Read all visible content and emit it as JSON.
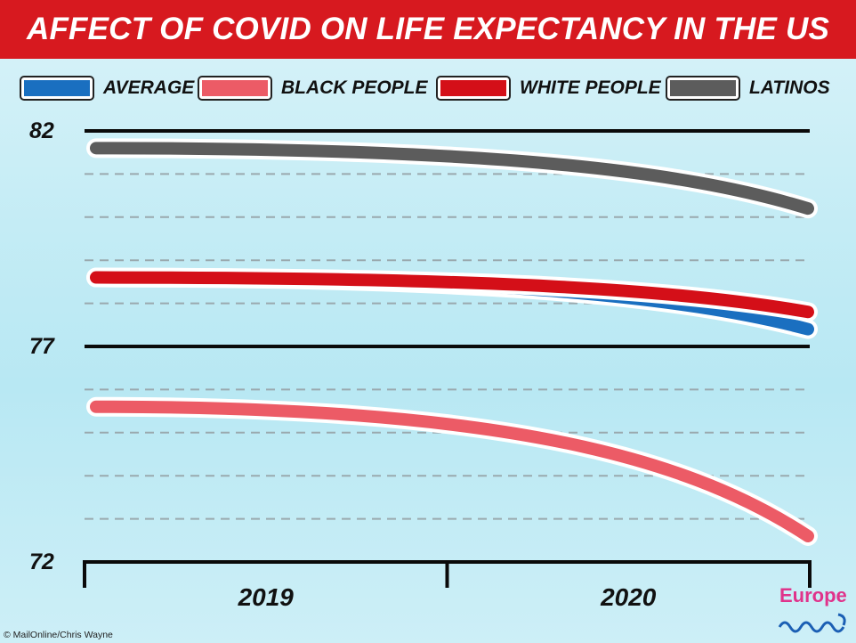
{
  "title": "AFFECT OF COVID ON LIFE EXPECTANCY IN THE US",
  "legend": [
    {
      "label": "AVERAGE",
      "color": "#1a6fc0"
    },
    {
      "label": "BLACK PEOPLE",
      "color": "#ec5b66"
    },
    {
      "label": "WHITE PEOPLE",
      "color": "#d40f18"
    },
    {
      "label": "LATINOS",
      "color": "#5c5c5c"
    }
  ],
  "credit": "© MailOnline/Chris Wayne",
  "logo_text": "Europe",
  "chart_data": {
    "type": "line",
    "title": "AFFECT OF COVID ON LIFE EXPECTANCY IN THE US",
    "x_categories": [
      "2019",
      "2020"
    ],
    "y_ticks": [
      82,
      77,
      72
    ],
    "ylim": [
      72,
      82
    ],
    "grid": true,
    "legend_position": "top",
    "series": [
      {
        "name": "LATINOS",
        "color": "#5c5c5c",
        "values": [
          81.6,
          80.2
        ]
      },
      {
        "name": "WHITE PEOPLE",
        "color": "#d40f18",
        "values": [
          78.6,
          77.8
        ]
      },
      {
        "name": "AVERAGE",
        "color": "#1a6fc0",
        "values": [
          78.6,
          77.4
        ]
      },
      {
        "name": "BLACK PEOPLE",
        "color": "#ec5b66",
        "values": [
          75.6,
          72.6
        ]
      }
    ]
  }
}
